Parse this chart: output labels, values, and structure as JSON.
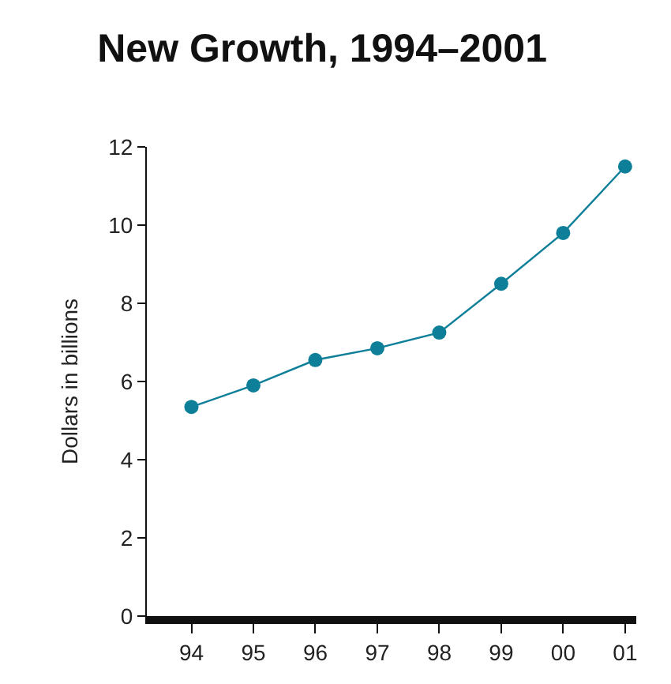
{
  "chart_data": {
    "type": "line",
    "title": "New Growth, 1994–2001",
    "ylabel": "Dollars in billions",
    "categories": [
      "94",
      "95",
      "96",
      "97",
      "98",
      "99",
      "00",
      "01"
    ],
    "series": [
      {
        "color": "#0e7f99",
        "values": [
          5.35,
          5.9,
          6.55,
          6.85,
          7.25,
          8.5,
          9.8,
          11.5
        ]
      }
    ],
    "ylim": [
      0,
      12
    ],
    "yticks": [
      0,
      2,
      4,
      6,
      8,
      10,
      12
    ],
    "legend": false,
    "marker": "circle",
    "line_style": "solid"
  }
}
